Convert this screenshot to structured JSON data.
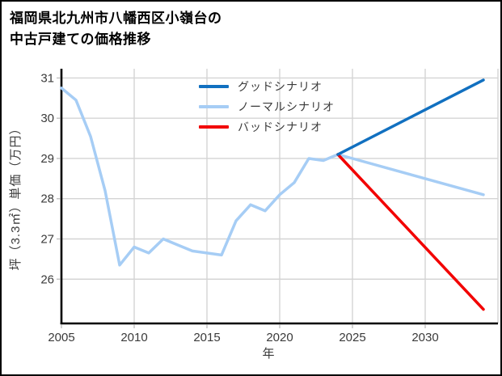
{
  "title_lines": [
    "福岡県北九州市八幡西区小嶺台の",
    "中古戸建ての価格推移"
  ],
  "chart_data": {
    "type": "line",
    "title": "福岡県北九州市八幡西区小嶺台の中古戸建ての価格推移",
    "xlabel": "年",
    "ylabel": "坪（3.3㎡）単価（万円）",
    "xlim": [
      2005,
      2035
    ],
    "ylim": [
      24.9,
      31.23
    ],
    "x_ticks": [
      2005,
      2010,
      2015,
      2020,
      2025,
      2030
    ],
    "y_ticks": [
      26,
      27,
      28,
      29,
      30,
      31
    ],
    "grid": true,
    "legend_position": "upper-center-inside",
    "colors": {
      "good": "#1170c0",
      "normal": "#a6cdf5",
      "bad": "#f20000",
      "grid": "#d4d4d4",
      "spine": "#000000",
      "tick_label": "#3a3a3a"
    },
    "series": [
      {
        "name": "グッドシナリオ",
        "key": "good",
        "color": "#1170c0",
        "x": [
          2024,
          2034
        ],
        "y": [
          29.1,
          30.95
        ]
      },
      {
        "name": "ノーマルシナリオ",
        "key": "normal",
        "color": "#a6cdf5",
        "x": [
          2005,
          2006,
          2007,
          2008,
          2009,
          2010,
          2011,
          2012,
          2013,
          2014,
          2015,
          2016,
          2017,
          2018,
          2019,
          2020,
          2021,
          2022,
          2023,
          2024,
          2034
        ],
        "y": [
          30.75,
          30.45,
          29.55,
          28.2,
          26.35,
          26.8,
          26.65,
          27.0,
          26.85,
          26.7,
          26.65,
          26.6,
          27.45,
          27.85,
          27.7,
          28.1,
          28.4,
          29.0,
          28.95,
          29.1,
          28.1
        ]
      },
      {
        "name": "バッドシナリオ",
        "key": "bad",
        "color": "#f20000",
        "x": [
          2024,
          2034
        ],
        "y": [
          29.1,
          25.25
        ]
      }
    ]
  }
}
